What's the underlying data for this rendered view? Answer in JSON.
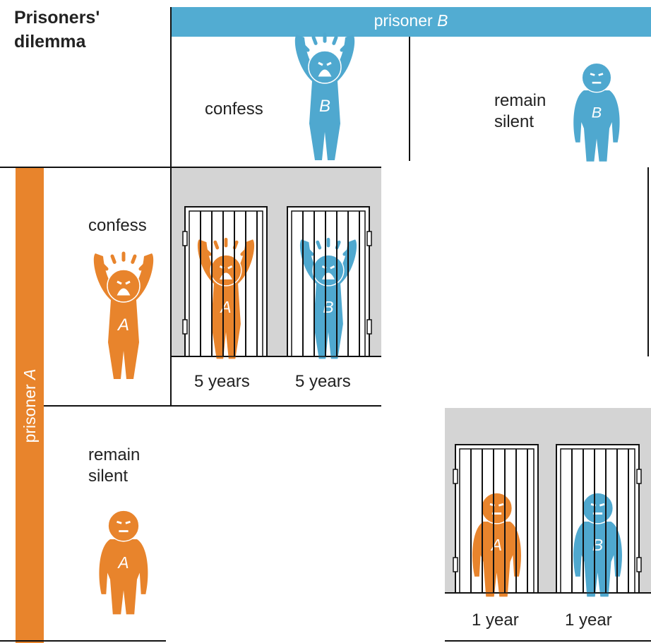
{
  "title": "Prisoners' dilemma",
  "prisoner_b": {
    "label": "prisoner",
    "letter": "B"
  },
  "prisoner_a": {
    "label": "prisoner",
    "letter": "A"
  },
  "columns": [
    {
      "label": "confess"
    },
    {
      "label": "remain silent"
    }
  ],
  "rows": [
    {
      "label": "confess"
    },
    {
      "label": "remain silent"
    }
  ],
  "outcomes": {
    "both_confess": [
      "5 years",
      "5 years"
    ],
    "both_silent": [
      "1 year",
      "1 year"
    ]
  }
}
